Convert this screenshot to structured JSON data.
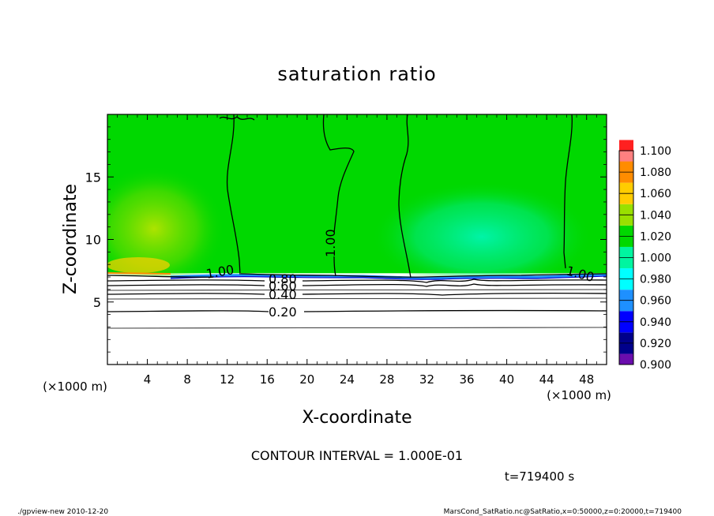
{
  "chart_data": {
    "type": "heatmap",
    "title": "saturation ratio",
    "xlabel": "X-coordinate",
    "ylabel": "Z-coordinate",
    "x_unit": "(×1000 m)",
    "y_unit": "(×1000 m)",
    "xlim": [
      0,
      50
    ],
    "ylim": [
      0,
      20
    ],
    "x_ticks": [
      4,
      8,
      12,
      16,
      20,
      24,
      28,
      32,
      36,
      40,
      44,
      48
    ],
    "y_ticks": [
      5,
      10,
      15
    ],
    "colorbar": {
      "levels": [
        0.9,
        0.92,
        0.94,
        0.96,
        0.98,
        1.0,
        1.02,
        1.04,
        1.06,
        1.08,
        1.1
      ],
      "labels": [
        "0.900",
        "0.920",
        "0.940",
        "0.960",
        "0.980",
        "1.000",
        "1.020",
        "1.040",
        "1.060",
        "1.080",
        "1.100"
      ],
      "colors": [
        "#6a0dad",
        "#00008b",
        "#0000ff",
        "#1e90ff",
        "#00ffff",
        "#00f5a0",
        "#00d800",
        "#99e000",
        "#ffcc00",
        "#ff8c00",
        "#ff2020",
        "#ff8080"
      ]
    },
    "contours": [
      {
        "label": "0.20",
        "z": 4.3
      },
      {
        "label": "0.40",
        "z": 5.5
      },
      {
        "label": "0.60",
        "z": 6.4
      },
      {
        "label": "0.80",
        "z": 6.8
      },
      {
        "label": "1.00",
        "z": 7.3
      }
    ],
    "saturated_boundary_z": 7.3,
    "contour_interval_label": "CONTOUR INTERVAL = 1.000E-01",
    "time_label": "t=719400 s"
  },
  "footer": {
    "left": "./gpview-new   2010-12-20",
    "right": "MarsCond_SatRatio.nc@SatRatio,x=0:50000,z=0:20000,t=719400"
  },
  "colors": {
    "field_green": "#00d800",
    "field_yellowgreen": "#99e000",
    "field_seagreen": "#00f0a0"
  }
}
